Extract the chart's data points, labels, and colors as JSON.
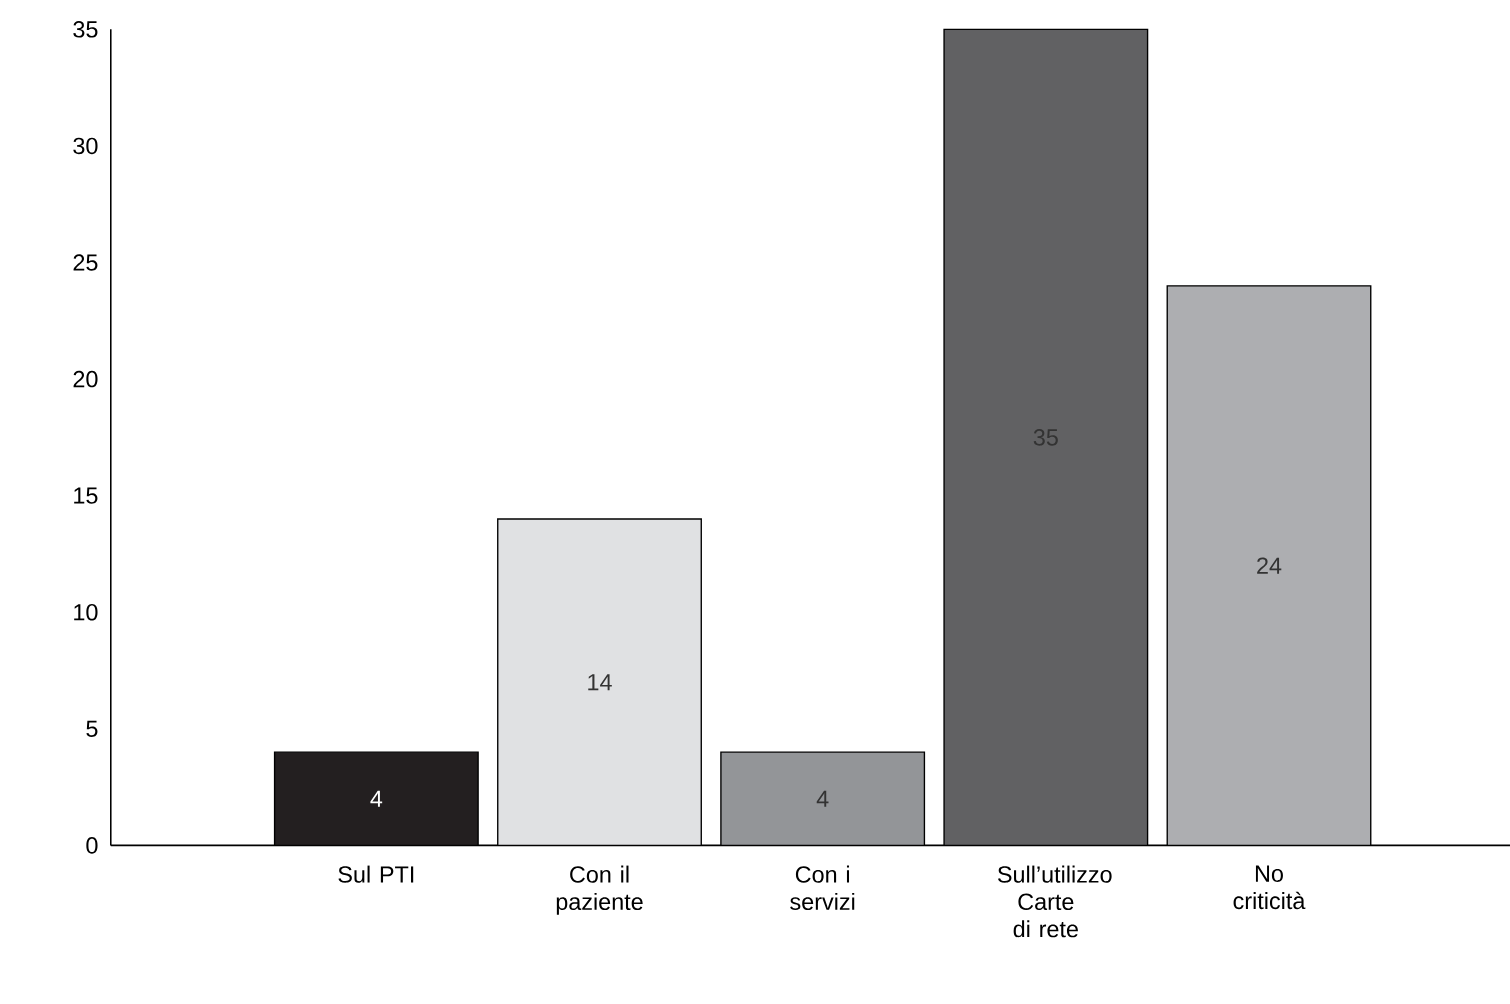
{
  "chart_data": {
    "type": "bar",
    "categories": [
      "Sul PTI",
      "Con il paziente",
      "Con i servizi",
      "Sull’utilizzo Carte di rete",
      "No criticità"
    ],
    "values": [
      4,
      14,
      4,
      35,
      24
    ],
    "colors": [
      "#231f20",
      "#e0e1e3",
      "#939598",
      "#616163",
      "#adaeb1"
    ],
    "ylim": [
      0,
      35
    ],
    "yticks": [
      0,
      5,
      10,
      15,
      20,
      25,
      30,
      35
    ],
    "data_labels": true,
    "grid": false
  }
}
